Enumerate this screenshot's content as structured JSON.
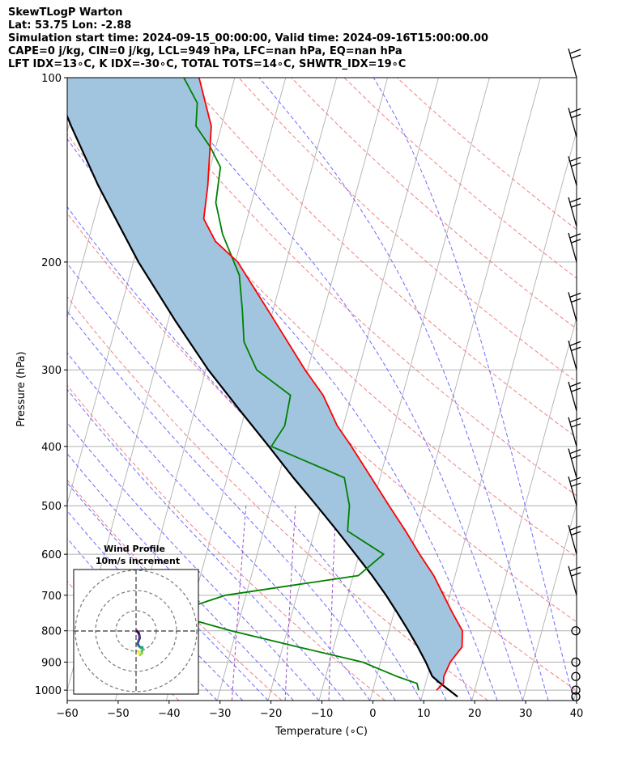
{
  "header": {
    "title": "SkewTLogP Warton",
    "location": "Lat: 53.75   Lon: -2.88",
    "times": "Simulation start time: 2024-09-15_00:00:00, Valid time: 2024-09-16T15:00:00.00",
    "indices1": "CAPE=0 j/kg, CIN=0 j/kg, LCL=949 hPa, LFC=nan hPa, EQ=nan hPa",
    "indices2": "LFT IDX=13∘C, K IDX=-30∘C, TOTAL TOTS=14∘C, SHWTR_IDX=19∘C"
  },
  "colors": {
    "temperature": "#ff0000",
    "dewpoint": "#008000",
    "parcel": "#000000",
    "shading": "#a1c5df",
    "dry_adiabat": "#f08080",
    "moist_adiabat": "#6b6bff",
    "mixing_ratio": "#9b4fc8",
    "isotherm": "#b0b0b0"
  },
  "chart_data": {
    "type": "line",
    "xlabel": "Temperature (∘C)",
    "ylabel": "Pressure (hPa)",
    "xlim": [
      -60,
      40
    ],
    "ylim": [
      1040,
      100
    ],
    "y_scale": "log",
    "x_ticks": [
      -60,
      -50,
      -40,
      -30,
      -20,
      -10,
      0,
      10,
      20,
      30,
      40
    ],
    "y_ticks": [
      1000,
      900,
      800,
      700,
      600,
      500,
      400,
      300,
      200,
      100
    ],
    "grid": true,
    "temperature_profile": [
      {
        "p": 1000,
        "t": 12.5
      },
      {
        "p": 975,
        "t": 13.5
      },
      {
        "p": 950,
        "t": 13.2
      },
      {
        "p": 900,
        "t": 13.7
      },
      {
        "p": 850,
        "t": 15.2
      },
      {
        "p": 800,
        "t": 14.4
      },
      {
        "p": 750,
        "t": 11.6
      },
      {
        "p": 700,
        "t": 8.8
      },
      {
        "p": 650,
        "t": 5.8
      },
      {
        "p": 600,
        "t": 1.9
      },
      {
        "p": 550,
        "t": -2.1
      },
      {
        "p": 500,
        "t": -6.7
      },
      {
        "p": 450,
        "t": -11.7
      },
      {
        "p": 400,
        "t": -17.3
      },
      {
        "p": 370,
        "t": -21.2
      },
      {
        "p": 330,
        "t": -25.6
      },
      {
        "p": 300,
        "t": -30.5
      },
      {
        "p": 250,
        "t": -39.0
      },
      {
        "p": 200,
        "t": -49.5
      },
      {
        "p": 185,
        "t": -55.0
      },
      {
        "p": 170,
        "t": -58.5
      },
      {
        "p": 150,
        "t": -59.5
      },
      {
        "p": 120,
        "t": -62.0
      },
      {
        "p": 100,
        "t": -67.0
      }
    ],
    "dewpoint_profile": [
      {
        "p": 1000,
        "t": 9.0
      },
      {
        "p": 975,
        "t": 8.3
      },
      {
        "p": 950,
        "t": 4.0
      },
      {
        "p": 900,
        "t": -3.5
      },
      {
        "p": 850,
        "t": -17.0
      },
      {
        "p": 800,
        "t": -31.0
      },
      {
        "p": 750,
        "t": -44.0
      },
      {
        "p": 700,
        "t": -34.0
      },
      {
        "p": 650,
        "t": -9.0
      },
      {
        "p": 600,
        "t": -5.2
      },
      {
        "p": 550,
        "t": -13.5
      },
      {
        "p": 500,
        "t": -14.5
      },
      {
        "p": 450,
        "t": -17.0
      },
      {
        "p": 400,
        "t": -33.0
      },
      {
        "p": 370,
        "t": -31.5
      },
      {
        "p": 330,
        "t": -32.0
      },
      {
        "p": 300,
        "t": -40.0
      },
      {
        "p": 270,
        "t": -44.0
      },
      {
        "p": 240,
        "t": -46.0
      },
      {
        "p": 210,
        "t": -48.5
      },
      {
        "p": 180,
        "t": -54.0
      },
      {
        "p": 160,
        "t": -57.0
      },
      {
        "p": 140,
        "t": -58.0
      },
      {
        "p": 130,
        "t": -61.0
      },
      {
        "p": 120,
        "t": -65.0
      },
      {
        "p": 110,
        "t": -66.0
      },
      {
        "p": 100,
        "t": -70.0
      }
    ],
    "parcel_profile": [
      {
        "p": 1025,
        "t": 17.0
      },
      {
        "p": 970,
        "t": 12.5
      },
      {
        "p": 949,
        "t": 10.9
      },
      {
        "p": 900,
        "t": 8.9
      },
      {
        "p": 850,
        "t": 6.5
      },
      {
        "p": 800,
        "t": 3.8
      },
      {
        "p": 750,
        "t": 0.8
      },
      {
        "p": 700,
        "t": -2.5
      },
      {
        "p": 650,
        "t": -6.3
      },
      {
        "p": 600,
        "t": -10.7
      },
      {
        "p": 550,
        "t": -15.5
      },
      {
        "p": 500,
        "t": -20.9
      },
      {
        "p": 450,
        "t": -27.0
      },
      {
        "p": 400,
        "t": -33.5
      },
      {
        "p": 350,
        "t": -41.0
      },
      {
        "p": 300,
        "t": -49.5
      },
      {
        "p": 250,
        "t": -58.5
      },
      {
        "p": 200,
        "t": -69.0
      },
      {
        "p": 150,
        "t": -81.0
      },
      {
        "p": 120,
        "t": -89.5
      },
      {
        "p": 100,
        "t": -96.0
      }
    ],
    "wind_barbs_p": [
      100,
      125,
      150,
      175,
      200,
      250,
      300,
      350,
      400,
      450,
      500,
      600,
      700,
      800,
      900,
      950,
      1000,
      1025
    ],
    "hodograph": {
      "title": "Wind Profile",
      "subtitle": "10m/s increment",
      "points": [
        {
          "u": 0.5,
          "v": 0.0
        },
        {
          "u": 1.2,
          "v": -0.8
        },
        {
          "u": 1.6,
          "v": -2.0
        },
        {
          "u": 1.8,
          "v": -3.5
        },
        {
          "u": 1.2,
          "v": -5.0
        },
        {
          "u": 0.8,
          "v": -6.5
        },
        {
          "u": 1.5,
          "v": -7.5
        },
        {
          "u": 2.4,
          "v": -8.3
        },
        {
          "u": 3.0,
          "v": -8.0
        },
        {
          "u": 3.4,
          "v": -9.0
        },
        {
          "u": 2.8,
          "v": -10.0
        },
        {
          "u": 3.0,
          "v": -11.0
        },
        {
          "u": 2.0,
          "v": -11.8
        },
        {
          "u": 1.5,
          "v": -11.0
        },
        {
          "u": 1.2,
          "v": -10.0
        }
      ]
    }
  }
}
